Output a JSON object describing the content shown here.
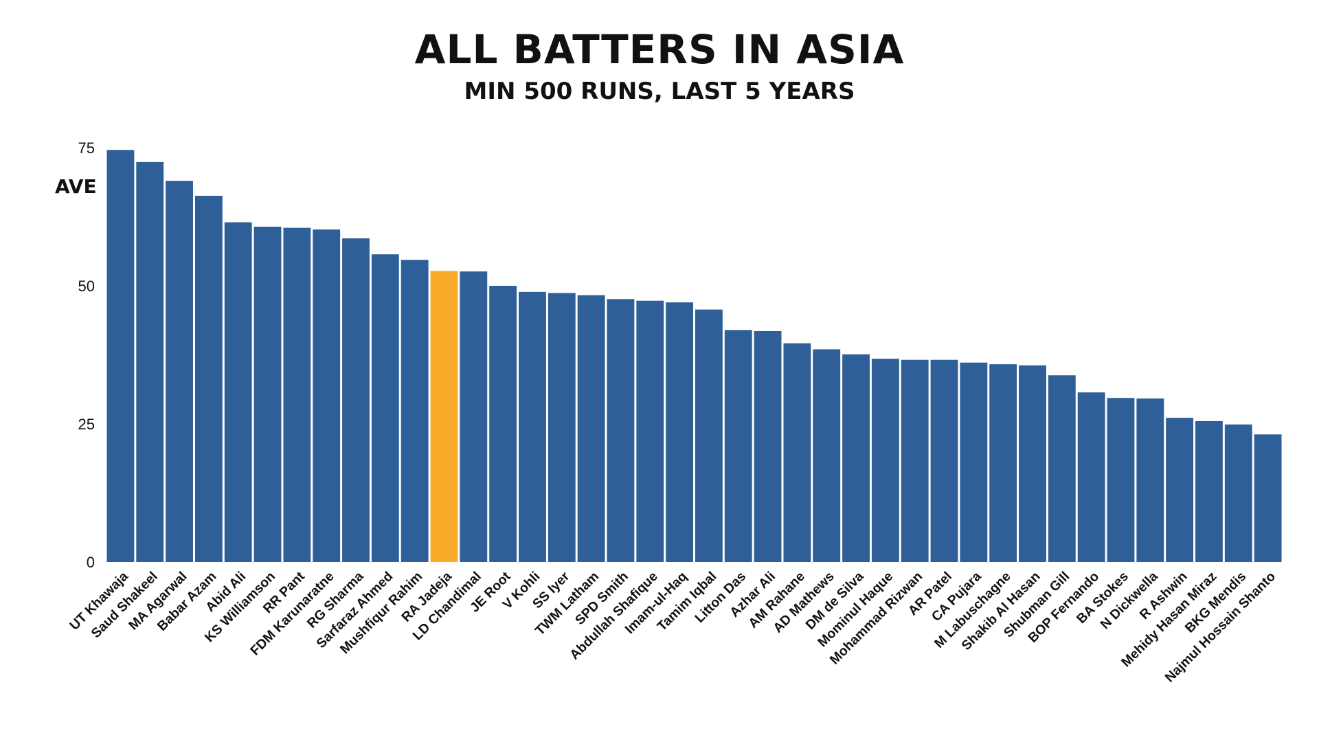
{
  "chart_data": {
    "type": "bar",
    "title": "ALL BATTERS IN ASIA",
    "subtitle": "MIN 500 RUNS, LAST 5 YEARS",
    "ylabel": "AVE",
    "xlabel": "",
    "ylim": [
      0,
      75
    ],
    "yticks": [
      0,
      25,
      50,
      75
    ],
    "grid": false,
    "colors": {
      "default": "#2E5F98",
      "highlight": "#F8AC2A"
    },
    "highlight": "RA Jadeja",
    "categories": [
      "UT Khawaja",
      "Saud Shakeel",
      "MA Agarwal",
      "Babar Azam",
      "Abid Ali",
      "KS Williamson",
      "RR Pant",
      "FDM Karunaratne",
      "RG Sharma",
      "Sarfaraz Ahmed",
      "Mushfiqur Rahim",
      "RA Jadeja",
      "LD Chandimal",
      "JE Root",
      "V Kohli",
      "SS Iyer",
      "TWM Latham",
      "SPD Smith",
      "Abdullah Shafique",
      "Imam-ul-Haq",
      "Tamim Iqbal",
      "Litton Das",
      "Azhar Ali",
      "AM Rahane",
      "AD Mathews",
      "DM de Silva",
      "Mominul Haque",
      "Mohammad Rizwan",
      "AR Patel",
      "CA Pujara",
      "M Labuschagne",
      "Shakib Al Hasan",
      "Shubman Gill",
      "BOP Fernando",
      "BA Stokes",
      "N Dickwella",
      "R Ashwin",
      "Mehidy Hasan Miraz",
      "BKG Mendis",
      "Najmul Hossain Shanto"
    ],
    "values": [
      74.6,
      72.4,
      69.0,
      66.3,
      61.5,
      60.7,
      60.5,
      60.2,
      58.6,
      55.7,
      54.7,
      52.7,
      52.6,
      50.0,
      48.9,
      48.7,
      48.3,
      47.6,
      47.3,
      47.0,
      45.7,
      42.0,
      41.8,
      39.6,
      38.5,
      37.6,
      36.8,
      36.6,
      36.6,
      36.1,
      35.8,
      35.6,
      33.8,
      30.7,
      29.7,
      29.6,
      26.1,
      25.5,
      24.9,
      23.1
    ]
  }
}
